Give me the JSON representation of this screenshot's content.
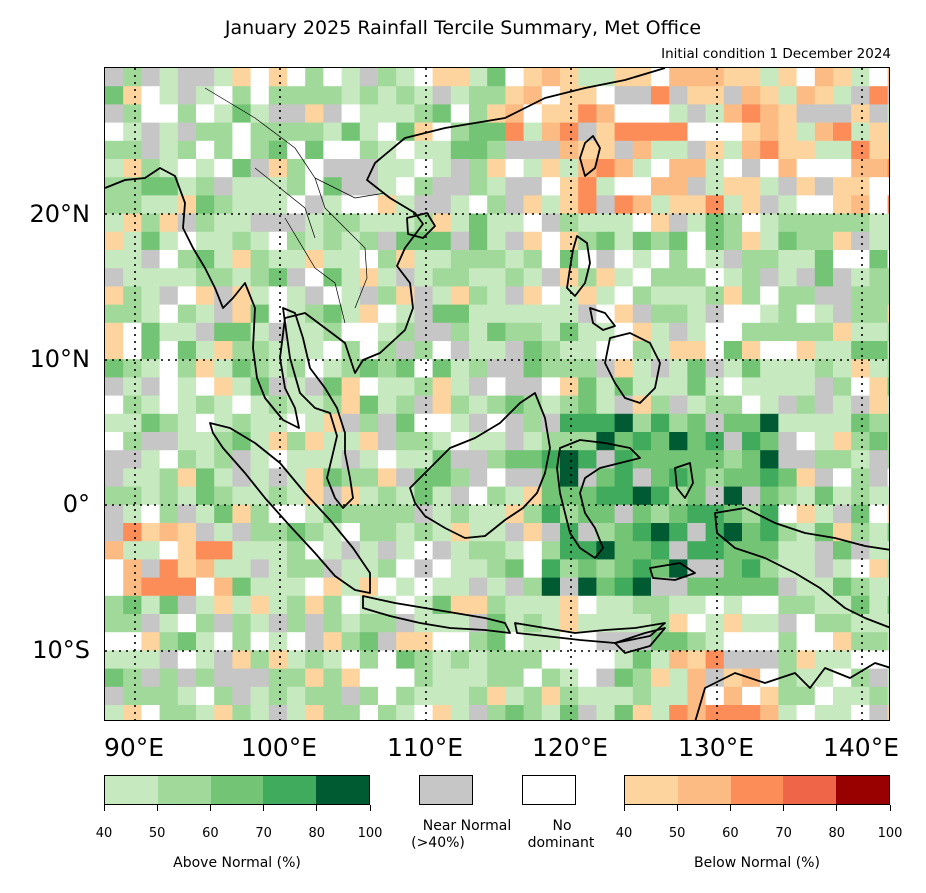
{
  "title": "January 2025 Rainfall Tercile Summary, Met Office",
  "subtitle": "Initial condition 1 December 2024",
  "map": {
    "lon_range": [
      88.5,
      142.5
    ],
    "lat_range": [
      -15,
      30
    ],
    "lat_labels": [
      "20°N",
      "10°N",
      "0°",
      "10°S"
    ],
    "lon_labels": [
      "90°E",
      "100°E",
      "110°E",
      "120°E",
      "130°E",
      "140°E"
    ],
    "gridlines": "dotted",
    "coastline_color": "#000000"
  },
  "legend": {
    "above": {
      "title": "Above Normal (%)",
      "ticks": [
        "40",
        "50",
        "60",
        "70",
        "80",
        "100"
      ],
      "colors": [
        "#c7e9c0",
        "#a1d99b",
        "#74c476",
        "#41ab5d",
        "#005a32"
      ]
    },
    "near_normal": {
      "label_line1": "Near Normal",
      "label_line2": "(>40%)",
      "color": "#c6c6c6"
    },
    "no_dominant": {
      "label_line1": "No",
      "label_line2": "dominant",
      "color": "#ffffff"
    },
    "below": {
      "title": "Below Normal (%)",
      "ticks": [
        "40",
        "50",
        "60",
        "70",
        "80",
        "100"
      ],
      "colors": [
        "#fdd49e",
        "#fdbb84",
        "#fc8d59",
        "#ef6548",
        "#990000"
      ]
    }
  }
}
